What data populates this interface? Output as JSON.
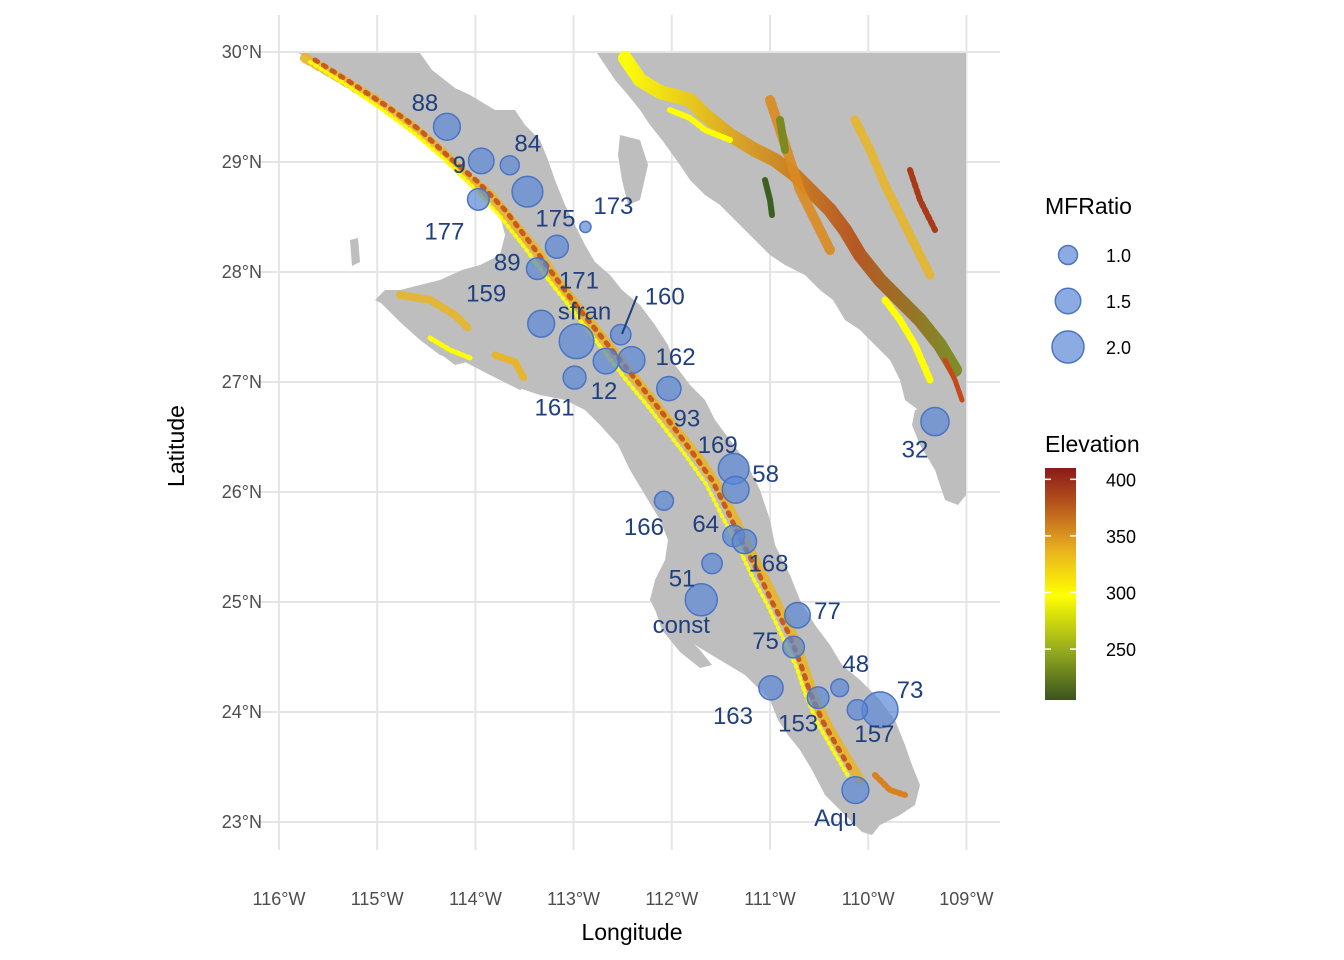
{
  "axes": {
    "xlabel": "Longitude",
    "ylabel": "Latitude",
    "x_ticks": [
      "116°W",
      "115°W",
      "114°W",
      "113°W",
      "112°W",
      "111°W",
      "110°W",
      "109°W"
    ],
    "y_ticks": [
      "30°N",
      "29°N",
      "28°N",
      "27°N",
      "26°N",
      "25°N",
      "24°N",
      "23°N"
    ],
    "xlim": [
      -116,
      -109
    ],
    "ylim": [
      23,
      30
    ]
  },
  "legend_size": {
    "title": "MFRatio",
    "entries": [
      {
        "label": "1.0",
        "value": 1.0
      },
      {
        "label": "1.5",
        "value": 1.5
      },
      {
        "label": "2.0",
        "value": 2.0
      }
    ]
  },
  "legend_elevation": {
    "title": "Elevation",
    "ticks": [
      "400",
      "350",
      "300",
      "250"
    ],
    "tick_values": [
      400,
      350,
      300,
      250
    ],
    "range": [
      205,
      410
    ]
  },
  "colors": {
    "land": "#bebebe",
    "point_fill": "#5b87d6",
    "point_stroke": "#4a74c4",
    "label": "#1f3f7f",
    "grid": "#e5e5e5",
    "elev_low": "#3b5320",
    "elev_mid": "#ffff00",
    "elev_high": "#8b1a1a"
  },
  "chart_data": {
    "type": "scatter",
    "size_variable": "MFRatio",
    "points": [
      {
        "label": "88",
        "lon": -114.29,
        "lat": 29.32,
        "mf": 1.6
      },
      {
        "label": "84",
        "lon": -113.65,
        "lat": 28.97,
        "mf": 1.0
      },
      {
        "label": "9",
        "lon": -113.94,
        "lat": 29.01,
        "mf": 1.5
      },
      {
        "label": "177",
        "lon": -113.97,
        "lat": 28.66,
        "mf": 1.2
      },
      {
        "label": "175",
        "lon": -113.47,
        "lat": 28.73,
        "mf": 1.9
      },
      {
        "label": "173",
        "lon": -112.88,
        "lat": 28.41,
        "mf": 0.4
      },
      {
        "label": "89",
        "lon": -113.37,
        "lat": 28.03,
        "mf": 1.2
      },
      {
        "label": "171",
        "lon": -113.17,
        "lat": 28.23,
        "mf": 1.3
      },
      {
        "label": "159",
        "lon": -113.33,
        "lat": 27.53,
        "mf": 1.6
      },
      {
        "label": "sfran",
        "lon": -112.97,
        "lat": 27.37,
        "mf": 2.2
      },
      {
        "label": "160",
        "lon": -112.52,
        "lat": 27.43,
        "mf": 1.1
      },
      {
        "label": "162",
        "lon": -112.41,
        "lat": 27.2,
        "mf": 1.6
      },
      {
        "label": "12",
        "lon": -112.67,
        "lat": 27.19,
        "mf": 1.5
      },
      {
        "label": "161",
        "lon": -112.99,
        "lat": 27.04,
        "mf": 1.3
      },
      {
        "label": "93",
        "lon": -112.03,
        "lat": 26.94,
        "mf": 1.4
      },
      {
        "label": "169",
        "lon": -111.37,
        "lat": 26.21,
        "mf": 1.9
      },
      {
        "label": "32",
        "lon": -109.32,
        "lat": 26.64,
        "mf": 1.7
      },
      {
        "label": "58",
        "lon": -111.35,
        "lat": 26.02,
        "mf": 1.6
      },
      {
        "label": "166",
        "lon": -112.08,
        "lat": 25.92,
        "mf": 1.0
      },
      {
        "label": "64",
        "lon": -111.37,
        "lat": 25.6,
        "mf": 1.2
      },
      {
        "label": "168",
        "lon": -111.26,
        "lat": 25.55,
        "mf": 1.4
      },
      {
        "label": "51",
        "lon": -111.59,
        "lat": 25.35,
        "mf": 1.1
      },
      {
        "label": "const",
        "lon": -111.7,
        "lat": 25.02,
        "mf": 2.0
      },
      {
        "label": "77",
        "lon": -110.72,
        "lat": 24.88,
        "mf": 1.5
      },
      {
        "label": "75",
        "lon": -110.76,
        "lat": 24.59,
        "mf": 1.2
      },
      {
        "label": "48",
        "lon": -110.29,
        "lat": 24.22,
        "mf": 0.9
      },
      {
        "label": "163",
        "lon": -110.99,
        "lat": 24.22,
        "mf": 1.4
      },
      {
        "label": "153",
        "lon": -110.51,
        "lat": 24.13,
        "mf": 1.2
      },
      {
        "label": "73",
        "lon": -109.88,
        "lat": 24.02,
        "mf": 2.3
      },
      {
        "label": "157",
        "lon": -110.11,
        "lat": 24.02,
        "mf": 1.1
      },
      {
        "label": "Aqu",
        "lon": -110.13,
        "lat": 23.29,
        "mf": 1.6
      }
    ]
  }
}
